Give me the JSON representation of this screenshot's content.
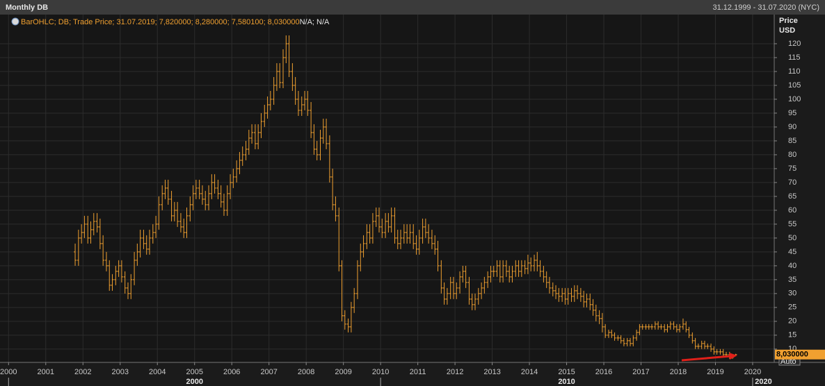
{
  "chart_data": {
    "type": "ohlc",
    "title": "Monthly DB",
    "date_range": "31.12.1999 - 31.07.2020 (NYC)",
    "legend_text": "BarOHLC; DB; Trade Price; 31.07.2019; 7,820000; 8,280000; 7,580100; 8,030000",
    "legend_status": "N/A; N/A",
    "y_axis_label": "Price",
    "y_axis_unit": "USD",
    "scale_mode": "Auto",
    "color": "#f0a030",
    "grid": true,
    "xlim": [
      1999.77,
      2020.58
    ],
    "ylim": [
      5.2,
      130.5
    ],
    "xticks": [
      2000,
      2001,
      2002,
      2003,
      2004,
      2005,
      2006,
      2007,
      2008,
      2009,
      2010,
      2011,
      2012,
      2013,
      2014,
      2015,
      2016,
      2017,
      2018,
      2019,
      2020
    ],
    "decade_ticks": [
      2000,
      2010,
      2020
    ],
    "yticks": [
      10,
      15,
      20,
      25,
      30,
      35,
      40,
      45,
      50,
      55,
      60,
      65,
      70,
      75,
      80,
      85,
      90,
      95,
      100,
      105,
      110,
      115,
      120
    ],
    "last_label": {
      "value": 8.03,
      "label": "8,030000"
    },
    "x": [
      2001.79,
      2001.88,
      2001.96,
      2002.04,
      2002.13,
      2002.21,
      2002.29,
      2002.38,
      2002.46,
      2002.54,
      2002.63,
      2002.71,
      2002.79,
      2002.88,
      2002.96,
      2003.04,
      2003.13,
      2003.21,
      2003.29,
      2003.38,
      2003.46,
      2003.54,
      2003.63,
      2003.71,
      2003.79,
      2003.88,
      2003.96,
      2004.04,
      2004.13,
      2004.21,
      2004.29,
      2004.38,
      2004.46,
      2004.54,
      2004.63,
      2004.71,
      2004.79,
      2004.88,
      2004.96,
      2005.04,
      2005.13,
      2005.21,
      2005.29,
      2005.38,
      2005.46,
      2005.54,
      2005.63,
      2005.71,
      2005.79,
      2005.88,
      2005.96,
      2006.04,
      2006.13,
      2006.21,
      2006.29,
      2006.38,
      2006.46,
      2006.54,
      2006.63,
      2006.71,
      2006.79,
      2006.88,
      2006.96,
      2007.04,
      2007.13,
      2007.21,
      2007.29,
      2007.38,
      2007.46,
      2007.54,
      2007.63,
      2007.71,
      2007.79,
      2007.88,
      2007.96,
      2008.04,
      2008.13,
      2008.21,
      2008.29,
      2008.38,
      2008.46,
      2008.54,
      2008.63,
      2008.71,
      2008.79,
      2008.88,
      2008.96,
      2009.04,
      2009.13,
      2009.21,
      2009.29,
      2009.38,
      2009.46,
      2009.54,
      2009.63,
      2009.71,
      2009.79,
      2009.88,
      2009.96,
      2010.04,
      2010.13,
      2010.21,
      2010.29,
      2010.38,
      2010.46,
      2010.54,
      2010.63,
      2010.71,
      2010.79,
      2010.88,
      2010.96,
      2011.04,
      2011.13,
      2011.21,
      2011.29,
      2011.38,
      2011.46,
      2011.54,
      2011.63,
      2011.71,
      2011.79,
      2011.88,
      2011.96,
      2012.04,
      2012.13,
      2012.21,
      2012.29,
      2012.38,
      2012.46,
      2012.54,
      2012.63,
      2012.71,
      2012.79,
      2012.88,
      2012.96,
      2013.04,
      2013.13,
      2013.21,
      2013.29,
      2013.38,
      2013.46,
      2013.54,
      2013.63,
      2013.71,
      2013.79,
      2013.88,
      2013.96,
      2014.04,
      2014.13,
      2014.21,
      2014.29,
      2014.38,
      2014.46,
      2014.54,
      2014.63,
      2014.71,
      2014.79,
      2014.88,
      2014.96,
      2015.04,
      2015.13,
      2015.21,
      2015.29,
      2015.38,
      2015.46,
      2015.54,
      2015.63,
      2015.71,
      2015.79,
      2015.88,
      2015.96,
      2016.04,
      2016.13,
      2016.21,
      2016.29,
      2016.38,
      2016.46,
      2016.54,
      2016.63,
      2016.71,
      2016.79,
      2016.88,
      2016.96,
      2017.04,
      2017.13,
      2017.21,
      2017.29,
      2017.38,
      2017.46,
      2017.54,
      2017.63,
      2017.71,
      2017.79,
      2017.88,
      2017.96,
      2018.04,
      2018.13,
      2018.21,
      2018.29,
      2018.38,
      2018.46,
      2018.54,
      2018.63,
      2018.71,
      2018.79,
      2018.88,
      2018.96,
      2019.04,
      2019.13,
      2019.21,
      2019.29,
      2019.38,
      2019.46,
      2019.54
    ],
    "open": [
      45,
      42,
      50,
      52,
      55,
      50,
      53,
      56,
      54,
      48,
      42,
      40,
      33,
      35,
      38,
      40,
      36,
      32,
      30,
      35,
      42,
      45,
      50,
      48,
      46,
      50,
      52,
      55,
      62,
      66,
      68,
      64,
      58,
      60,
      56,
      54,
      52,
      58,
      62,
      66,
      68,
      66,
      64,
      62,
      66,
      70,
      68,
      66,
      63,
      60,
      66,
      70,
      72,
      75,
      78,
      80,
      82,
      86,
      88,
      84,
      88,
      92,
      95,
      98,
      100,
      105,
      110,
      106,
      115,
      120,
      110,
      105,
      100,
      96,
      98,
      100,
      96,
      88,
      82,
      80,
      86,
      90,
      84,
      72,
      62,
      58,
      40,
      22,
      19,
      18,
      25,
      30,
      40,
      45,
      48,
      52,
      50,
      56,
      58,
      54,
      52,
      56,
      54,
      58,
      50,
      48,
      50,
      52,
      50,
      52,
      48,
      46,
      50,
      54,
      52,
      50,
      48,
      46,
      40,
      32,
      28,
      30,
      34,
      30,
      32,
      36,
      38,
      34,
      28,
      26,
      28,
      30,
      32,
      34,
      36,
      38,
      38,
      40,
      36,
      40,
      38,
      36,
      38,
      40,
      38,
      40,
      39,
      41,
      40,
      42,
      40,
      38,
      36,
      34,
      32,
      31,
      30,
      29,
      30,
      28,
      30,
      29,
      31,
      30,
      29,
      27,
      28,
      26,
      24,
      22,
      21,
      18,
      15,
      16,
      15,
      14,
      14,
      13,
      12,
      13,
      12,
      14,
      16,
      18,
      18,
      18,
      18,
      18,
      19,
      18,
      18,
      17,
      18,
      19,
      18,
      17,
      18,
      19,
      17,
      15,
      13,
      11,
      11,
      12,
      11,
      11,
      10,
      9,
      9,
      9,
      8,
      8,
      7,
      7.82
    ],
    "high": [
      48,
      53,
      55,
      58,
      58,
      56,
      59,
      59,
      57,
      51,
      45,
      42,
      37,
      40,
      42,
      42,
      38,
      34,
      37,
      45,
      48,
      53,
      53,
      51,
      53,
      55,
      58,
      65,
      69,
      71,
      71,
      67,
      63,
      63,
      59,
      57,
      61,
      65,
      69,
      71,
      71,
      69,
      67,
      69,
      73,
      73,
      71,
      69,
      66,
      69,
      73,
      75,
      78,
      81,
      83,
      85,
      89,
      91,
      91,
      91,
      95,
      98,
      101,
      103,
      108,
      113,
      113,
      118,
      123,
      123,
      113,
      108,
      103,
      101,
      103,
      103,
      99,
      91,
      85,
      89,
      93,
      93,
      87,
      75,
      65,
      61,
      42,
      24,
      21,
      27,
      32,
      42,
      48,
      51,
      55,
      55,
      59,
      61,
      61,
      57,
      59,
      59,
      61,
      61,
      53,
      53,
      55,
      55,
      55,
      55,
      51,
      53,
      57,
      57,
      55,
      53,
      51,
      49,
      42,
      34,
      32,
      36,
      36,
      34,
      38,
      40,
      40,
      36,
      30,
      30,
      32,
      34,
      36,
      38,
      40,
      40,
      42,
      42,
      42,
      42,
      40,
      40,
      42,
      42,
      42,
      42,
      44,
      43,
      44,
      45,
      42,
      40,
      38,
      36,
      34,
      33,
      32,
      32,
      32,
      32,
      32,
      33,
      33,
      32,
      31,
      30,
      30,
      28,
      26,
      24,
      23,
      19,
      17,
      17,
      16,
      15,
      15,
      14,
      14,
      14,
      15,
      17,
      19,
      19,
      19,
      19,
      19,
      20,
      20,
      19,
      19,
      19,
      20,
      20,
      19,
      19,
      21,
      20,
      18,
      16,
      14,
      12,
      13,
      13,
      12,
      12,
      11,
      10,
      10,
      10,
      9,
      9,
      8,
      8.28
    ],
    "low": [
      40,
      40,
      48,
      50,
      48,
      48,
      51,
      52,
      46,
      40,
      38,
      31,
      31,
      33,
      36,
      34,
      30,
      28,
      28,
      33,
      40,
      43,
      46,
      44,
      44,
      48,
      50,
      53,
      60,
      64,
      62,
      56,
      56,
      54,
      52,
      50,
      50,
      56,
      60,
      64,
      64,
      62,
      60,
      60,
      64,
      66,
      64,
      61,
      58,
      58,
      64,
      68,
      70,
      73,
      76,
      78,
      80,
      84,
      82,
      82,
      86,
      90,
      93,
      96,
      98,
      103,
      104,
      104,
      113,
      108,
      103,
      98,
      94,
      94,
      96,
      94,
      86,
      80,
      78,
      78,
      84,
      82,
      70,
      60,
      56,
      38,
      20,
      17,
      16,
      16,
      23,
      28,
      38,
      43,
      46,
      48,
      48,
      54,
      52,
      50,
      50,
      52,
      52,
      48,
      46,
      46,
      48,
      48,
      48,
      46,
      44,
      44,
      48,
      50,
      48,
      46,
      44,
      38,
      30,
      26,
      26,
      28,
      28,
      28,
      30,
      34,
      32,
      26,
      24,
      24,
      26,
      28,
      30,
      32,
      34,
      36,
      36,
      34,
      34,
      36,
      34,
      34,
      36,
      36,
      36,
      37,
      37,
      38,
      38,
      38,
      36,
      34,
      32,
      30,
      29,
      28,
      27,
      27,
      26,
      26,
      27,
      27,
      28,
      27,
      25,
      25,
      24,
      22,
      20,
      19,
      16,
      14,
      14,
      14,
      13,
      13,
      12,
      11,
      11,
      11,
      11,
      13,
      15,
      17,
      17,
      17,
      17,
      17,
      17,
      17,
      16,
      16,
      17,
      17,
      16,
      16,
      17,
      16,
      14,
      12,
      10,
      10,
      10,
      10,
      10,
      9,
      8,
      8,
      8,
      7.5,
      7,
      6.5,
      6.5,
      7.58
    ],
    "close": [
      42,
      50,
      52,
      55,
      50,
      53,
      56,
      54,
      48,
      42,
      40,
      33,
      35,
      38,
      40,
      36,
      32,
      30,
      35,
      42,
      45,
      50,
      48,
      46,
      50,
      52,
      55,
      62,
      66,
      68,
      64,
      58,
      60,
      56,
      54,
      52,
      58,
      62,
      66,
      68,
      66,
      64,
      62,
      66,
      70,
      68,
      66,
      63,
      60,
      66,
      70,
      72,
      75,
      78,
      80,
      82,
      86,
      88,
      84,
      88,
      92,
      95,
      98,
      100,
      105,
      110,
      106,
      115,
      120,
      110,
      105,
      100,
      96,
      98,
      100,
      96,
      88,
      82,
      80,
      86,
      90,
      84,
      72,
      62,
      58,
      40,
      22,
      19,
      18,
      25,
      30,
      40,
      45,
      48,
      52,
      50,
      56,
      58,
      54,
      52,
      56,
      54,
      58,
      50,
      48,
      50,
      52,
      50,
      52,
      48,
      46,
      50,
      54,
      52,
      50,
      48,
      46,
      40,
      32,
      28,
      30,
      34,
      30,
      32,
      36,
      38,
      34,
      28,
      26,
      28,
      30,
      32,
      34,
      36,
      38,
      38,
      40,
      36,
      40,
      38,
      36,
      38,
      40,
      38,
      40,
      39,
      41,
      40,
      42,
      40,
      38,
      36,
      34,
      32,
      31,
      30,
      29,
      30,
      28,
      30,
      29,
      31,
      30,
      29,
      27,
      28,
      26,
      24,
      22,
      21,
      18,
      15,
      16,
      15,
      14,
      14,
      13,
      12,
      13,
      12,
      14,
      16,
      18,
      18,
      18,
      18,
      18,
      19,
      18,
      18,
      17,
      18,
      19,
      18,
      17,
      18,
      19,
      17,
      15,
      13,
      11,
      11,
      12,
      11,
      11,
      10,
      9,
      9,
      9,
      8,
      8,
      7,
      7,
      8.03
    ]
  }
}
